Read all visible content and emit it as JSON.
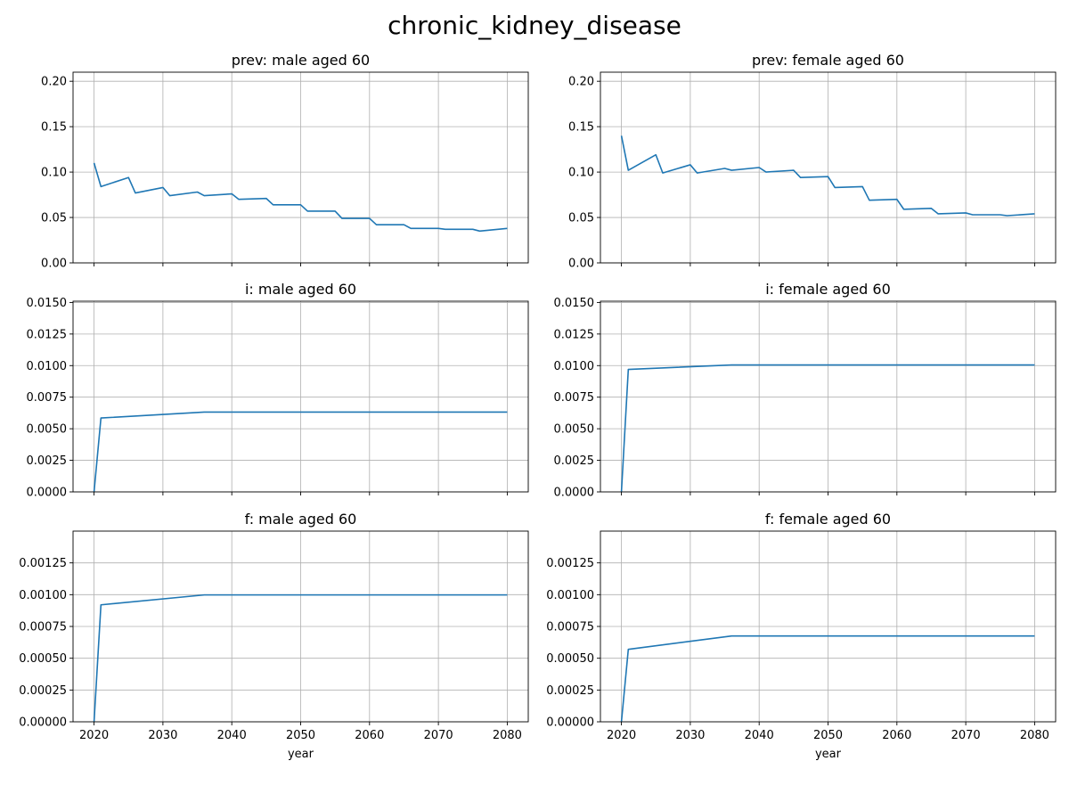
{
  "figure": {
    "title": "chronic_kidney_disease"
  },
  "style": {
    "line_color": "#1f77b4",
    "grid_color": "#b0b0b0",
    "axis_color": "#000000"
  },
  "chart_data": [
    {
      "type": "line",
      "title": "prev: male aged 60",
      "xlabel": "",
      "ylabel": "",
      "xlim": [
        2016.95,
        2083.05
      ],
      "ylim": [
        0,
        0.21
      ],
      "xticks": [
        2020,
        2030,
        2040,
        2050,
        2060,
        2070,
        2080
      ],
      "xtick_labels_visible": false,
      "yticks": [
        0.0,
        0.05,
        0.1,
        0.15,
        0.2
      ],
      "ytick_labels": [
        "0.00",
        "0.05",
        "0.10",
        "0.15",
        "0.20"
      ],
      "grid": true,
      "x": [
        2020,
        2021,
        2025,
        2026,
        2030,
        2031,
        2035,
        2036,
        2040,
        2041,
        2045,
        2046,
        2050,
        2051,
        2055,
        2056,
        2060,
        2061,
        2065,
        2066,
        2070,
        2071,
        2075,
        2076,
        2080
      ],
      "y": [
        0.11,
        0.084,
        0.094,
        0.077,
        0.083,
        0.074,
        0.078,
        0.074,
        0.076,
        0.07,
        0.071,
        0.064,
        0.064,
        0.057,
        0.057,
        0.049,
        0.049,
        0.042,
        0.042,
        0.038,
        0.038,
        0.037,
        0.037,
        0.035,
        0.038
      ]
    },
    {
      "type": "line",
      "title": "prev: female aged 60",
      "xlabel": "",
      "ylabel": "",
      "xlim": [
        2016.95,
        2083.05
      ],
      "ylim": [
        0,
        0.21
      ],
      "xticks": [
        2020,
        2030,
        2040,
        2050,
        2060,
        2070,
        2080
      ],
      "xtick_labels_visible": false,
      "yticks": [
        0.0,
        0.05,
        0.1,
        0.15,
        0.2
      ],
      "ytick_labels": [
        "0.00",
        "0.05",
        "0.10",
        "0.15",
        "0.20"
      ],
      "grid": true,
      "x": [
        2020,
        2021,
        2025,
        2026,
        2030,
        2031,
        2035,
        2036,
        2040,
        2041,
        2045,
        2046,
        2050,
        2051,
        2055,
        2056,
        2060,
        2061,
        2065,
        2066,
        2070,
        2071,
        2075,
        2076,
        2080
      ],
      "y": [
        0.14,
        0.102,
        0.119,
        0.099,
        0.108,
        0.099,
        0.104,
        0.102,
        0.105,
        0.1,
        0.102,
        0.094,
        0.095,
        0.083,
        0.084,
        0.069,
        0.07,
        0.059,
        0.06,
        0.054,
        0.055,
        0.053,
        0.053,
        0.052,
        0.054
      ]
    },
    {
      "type": "line",
      "title": "i: male aged 60",
      "xlabel": "",
      "ylabel": "",
      "xlim": [
        2016.95,
        2083.05
      ],
      "ylim": [
        0,
        0.0151
      ],
      "xticks": [
        2020,
        2030,
        2040,
        2050,
        2060,
        2070,
        2080
      ],
      "xtick_labels_visible": false,
      "yticks": [
        0.0,
        0.0025,
        0.005,
        0.0075,
        0.01,
        0.0125,
        0.015
      ],
      "ytick_labels": [
        "0.0000",
        "0.0025",
        "0.0050",
        "0.0075",
        "0.0100",
        "0.0125",
        "0.0150"
      ],
      "grid": true,
      "x": [
        2020,
        2021,
        2036,
        2080
      ],
      "y": [
        0.0,
        0.00585,
        0.00632,
        0.00632
      ]
    },
    {
      "type": "line",
      "title": "i: female aged 60",
      "xlabel": "",
      "ylabel": "",
      "xlim": [
        2016.95,
        2083.05
      ],
      "ylim": [
        0,
        0.0151
      ],
      "xticks": [
        2020,
        2030,
        2040,
        2050,
        2060,
        2070,
        2080
      ],
      "xtick_labels_visible": false,
      "yticks": [
        0.0,
        0.0025,
        0.005,
        0.0075,
        0.01,
        0.0125,
        0.015
      ],
      "ytick_labels": [
        "0.0000",
        "0.0025",
        "0.0050",
        "0.0075",
        "0.0100",
        "0.0125",
        "0.0150"
      ],
      "grid": true,
      "x": [
        2020,
        2021,
        2036,
        2080
      ],
      "y": [
        0.0,
        0.0097,
        0.01005,
        0.01005
      ]
    },
    {
      "type": "line",
      "title": "f: male aged 60",
      "xlabel": "year",
      "ylabel": "",
      "xlim": [
        2016.95,
        2083.05
      ],
      "ylim": [
        0,
        0.0015
      ],
      "xticks": [
        2020,
        2030,
        2040,
        2050,
        2060,
        2070,
        2080
      ],
      "xtick_labels_visible": true,
      "xtick_labels": [
        "2020",
        "2030",
        "2040",
        "2050",
        "2060",
        "2070",
        "2080"
      ],
      "yticks": [
        0.0,
        0.00025,
        0.0005,
        0.00075,
        0.001,
        0.00125
      ],
      "ytick_labels": [
        "0.00000",
        "0.00025",
        "0.00050",
        "0.00075",
        "0.00100",
        "0.00125"
      ],
      "grid": true,
      "x": [
        2020,
        2021,
        2036,
        2080
      ],
      "y": [
        0.0,
        0.00092,
        0.000998,
        0.000998
      ]
    },
    {
      "type": "line",
      "title": "f: female aged 60",
      "xlabel": "year",
      "ylabel": "",
      "xlim": [
        2016.95,
        2083.05
      ],
      "ylim": [
        0,
        0.0015
      ],
      "xticks": [
        2020,
        2030,
        2040,
        2050,
        2060,
        2070,
        2080
      ],
      "xtick_labels_visible": true,
      "xtick_labels": [
        "2020",
        "2030",
        "2040",
        "2050",
        "2060",
        "2070",
        "2080"
      ],
      "yticks": [
        0.0,
        0.00025,
        0.0005,
        0.00075,
        0.001,
        0.00125
      ],
      "ytick_labels": [
        "0.00000",
        "0.00025",
        "0.00050",
        "0.00075",
        "0.00100",
        "0.00125"
      ],
      "grid": true,
      "x": [
        2020,
        2021,
        2036,
        2080
      ],
      "y": [
        0.0,
        0.00057,
        0.000675,
        0.000675
      ]
    }
  ]
}
